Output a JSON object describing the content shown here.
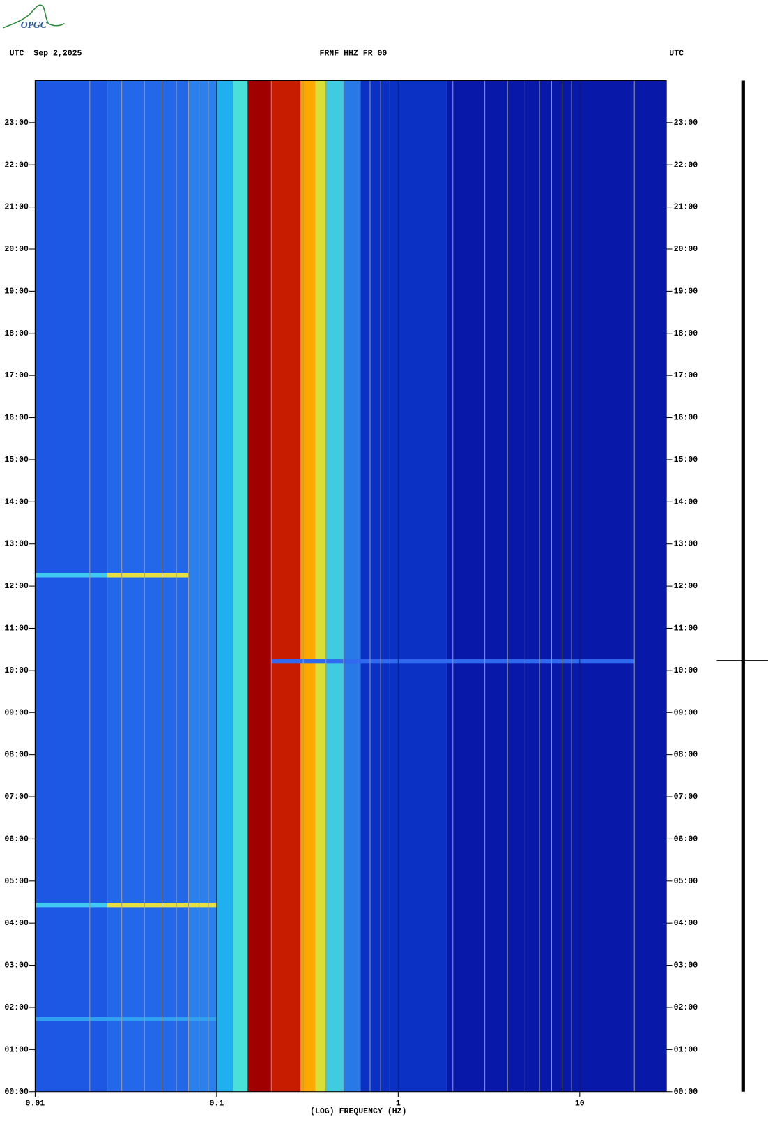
{
  "logo": "OPGC",
  "chart_data": {
    "type": "spectrogram",
    "title": "FRNF HHZ FR 00",
    "left_header": "UTC  Sep 2,2025",
    "right_header": "UTC",
    "xlabel": "(LOG) FREQUENCY (HZ)",
    "xscale": "log",
    "xlim": [
      0.01,
      30
    ],
    "xticks": [
      0.01,
      0.1,
      1,
      10
    ],
    "xminorticks": [
      0.02,
      0.03,
      0.04,
      0.05,
      0.06,
      0.07,
      0.08,
      0.09,
      0.2,
      0.3,
      0.4,
      0.5,
      0.6,
      0.7,
      0.8,
      0.9,
      2,
      3,
      4,
      5,
      6,
      7,
      8,
      9,
      20
    ],
    "ylim": [
      0,
      24
    ],
    "yticks": [
      {
        "value": 0,
        "label": "00:00"
      },
      {
        "value": 1,
        "label": "01:00"
      },
      {
        "value": 2,
        "label": "02:00"
      },
      {
        "value": 3,
        "label": "03:00"
      },
      {
        "value": 4,
        "label": "04:00"
      },
      {
        "value": 5,
        "label": "05:00"
      },
      {
        "value": 6,
        "label": "06:00"
      },
      {
        "value": 7,
        "label": "07:00"
      },
      {
        "value": 8,
        "label": "08:00"
      },
      {
        "value": 9,
        "label": "09:00"
      },
      {
        "value": 10,
        "label": "10:00"
      },
      {
        "value": 11,
        "label": "11:00"
      },
      {
        "value": 12,
        "label": "12:00"
      },
      {
        "value": 13,
        "label": "13:00"
      },
      {
        "value": 14,
        "label": "14:00"
      },
      {
        "value": 15,
        "label": "15:00"
      },
      {
        "value": 16,
        "label": "16:00"
      },
      {
        "value": 17,
        "label": "17:00"
      },
      {
        "value": 18,
        "label": "18:00"
      },
      {
        "value": 19,
        "label": "19:00"
      },
      {
        "value": 20,
        "label": "20:00"
      },
      {
        "value": 21,
        "label": "21:00"
      },
      {
        "value": 22,
        "label": "22:00"
      },
      {
        "value": 23,
        "label": "23:00"
      }
    ],
    "bands": [
      {
        "x": [
          0.01,
          0.025
        ],
        "color": "#1d58e4"
      },
      {
        "x": [
          0.025,
          0.07
        ],
        "color": "#2268e8"
      },
      {
        "x": [
          0.07,
          0.1
        ],
        "color": "#2a80ec"
      },
      {
        "x": [
          0.1,
          0.123
        ],
        "color": "#20b0f0"
      },
      {
        "x": [
          0.123,
          0.148
        ],
        "color": "#48e0d8"
      },
      {
        "x": [
          0.148,
          0.2
        ],
        "color": "#a00000"
      },
      {
        "x": [
          0.2,
          0.29
        ],
        "color": "#c81c00"
      },
      {
        "x": [
          0.29,
          0.35
        ],
        "color": "#ffa800"
      },
      {
        "x": [
          0.35,
          0.4
        ],
        "color": "#d8e038"
      },
      {
        "x": [
          0.4,
          0.5
        ],
        "color": "#40cce0"
      },
      {
        "x": [
          0.5,
          0.62
        ],
        "color": "#2878e8"
      },
      {
        "x": [
          0.62,
          1.85
        ],
        "color": "#0a30c4"
      },
      {
        "x": [
          1.85,
          30
        ],
        "color": "#0818a8"
      }
    ],
    "events": [
      {
        "y": 1.72,
        "x": [
          0.01,
          0.1
        ],
        "color": "#30a0f0"
      },
      {
        "y": 4.43,
        "x": [
          0.01,
          0.025
        ],
        "color": "#40c8f0"
      },
      {
        "y": 4.43,
        "x": [
          0.025,
          0.1
        ],
        "color": "#e8e040"
      },
      {
        "y": 10.21,
        "x": [
          0.2,
          20
        ],
        "color": "#3068f0"
      },
      {
        "y": 12.26,
        "x": [
          0.01,
          0.025
        ],
        "color": "#40c8f0"
      },
      {
        "y": 12.26,
        "x": [
          0.025,
          0.07
        ],
        "color": "#e8e040"
      }
    ]
  }
}
